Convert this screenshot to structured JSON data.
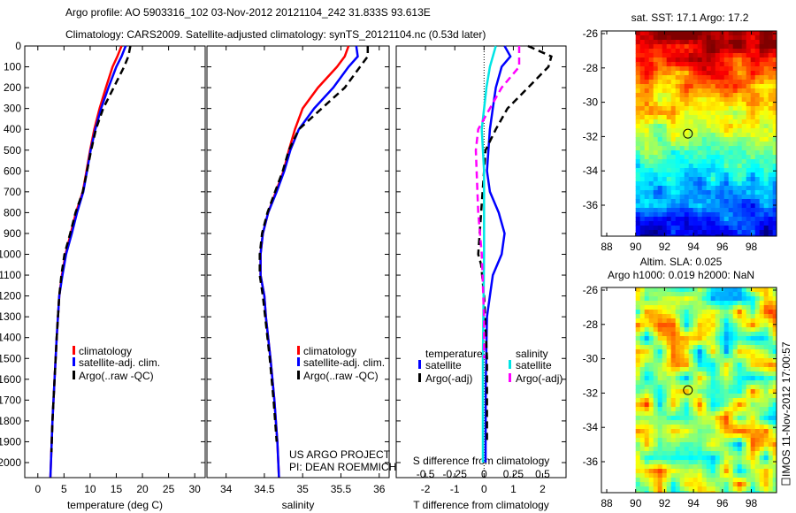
{
  "title_line1": "Argo profile: AO 5903316_102 03-Nov-2012 20121104_242 31.833S 93.613E",
  "title_line2": "Climatology: CARS2009. Satellite-adjusted climatology: synTS_20121104.nc (0.53d later)",
  "colors": {
    "climatology": "#ff0000",
    "satellite": "#0000ff",
    "argo": "#000000",
    "sal_satellite": "#00e5e5",
    "sal_argo": "#ff00ff"
  },
  "chart_data": [
    {
      "type": "line",
      "title": "",
      "xlabel": "temperature (deg C)",
      "ylabel": "",
      "xlim": [
        -2.5,
        32
      ],
      "ylim": [
        2070,
        0
      ],
      "xticks": [
        "0",
        "5",
        "10",
        "15",
        "20",
        "25",
        "30"
      ],
      "xtick_values": [
        0,
        5,
        10,
        15,
        20,
        25,
        30
      ],
      "yticks": [
        "0",
        "100",
        "200",
        "300",
        "400",
        "500",
        "600",
        "700",
        "800",
        "900",
        "1000",
        "1100",
        "1200",
        "1300",
        "1400",
        "1500",
        "1600",
        "1700",
        "1800",
        "1900",
        "2000"
      ],
      "legend": [
        "climatology",
        "satellite-adj. clim.",
        "Argo(..raw -QC)"
      ],
      "legend_placement": "bottom-center",
      "series": [
        {
          "name": "climatology",
          "color": "#ff0000",
          "dash": false,
          "depth": [
            0,
            50,
            100,
            200,
            300,
            400,
            500,
            600,
            700,
            800,
            900,
            1000,
            1100,
            1200,
            1400,
            1600,
            1800,
            2000,
            2070
          ],
          "values": [
            16,
            15.2,
            14.3,
            13.0,
            11.8,
            10.8,
            10.0,
            9.3,
            8.6,
            7.3,
            6.3,
            5.3,
            4.6,
            4.1,
            3.6,
            3.2,
            2.8,
            2.5,
            2.4
          ]
        },
        {
          "name": "satellite-adj. clim.",
          "color": "#0000ff",
          "dash": false,
          "depth": [
            0,
            50,
            100,
            200,
            300,
            400,
            500,
            600,
            700,
            800,
            900,
            1000,
            1100,
            1200,
            1400,
            1600,
            1800,
            2000,
            2070
          ],
          "values": [
            16.8,
            16.0,
            15.0,
            13.5,
            12.1,
            11.0,
            10.1,
            9.4,
            8.7,
            7.5,
            6.5,
            5.4,
            4.7,
            4.1,
            3.6,
            3.2,
            2.8,
            2.5,
            2.4
          ]
        },
        {
          "name": "Argo(..raw -QC)",
          "color": "#000000",
          "dash": true,
          "depth": [
            0,
            50,
            100,
            200,
            300,
            400,
            500,
            600,
            700,
            800,
            900,
            1000,
            1100,
            1200,
            1400,
            1600,
            1800,
            1950
          ],
          "values": [
            17.7,
            17.3,
            16.5,
            14.5,
            12.5,
            11.1,
            10.2,
            9.4,
            8.6,
            7.2,
            6.2,
            5.1,
            4.5,
            4.1,
            3.6,
            3.2,
            2.8,
            2.6
          ]
        }
      ]
    },
    {
      "type": "line",
      "xlabel": "salinity",
      "xlim": [
        33.75,
        36.13
      ],
      "ylim": [
        2070,
        0
      ],
      "xticks": [
        "34",
        "34.5",
        "35",
        "35.5",
        "36"
      ],
      "xtick_values": [
        34,
        34.5,
        35,
        35.5,
        36
      ],
      "legend": [
        "climatology",
        "satellite-adj. clim.",
        "Argo(..raw -QC)"
      ],
      "legend_placement": "bottom-right",
      "annotation": [
        "US ARGO PROJECT",
        "PI: DEAN ROEMMICH"
      ],
      "series": [
        {
          "name": "climatology",
          "color": "#ff0000",
          "dash": false,
          "depth": [
            0,
            50,
            100,
            200,
            300,
            400,
            500,
            600,
            700,
            800,
            900,
            1000,
            1100,
            1200,
            1300,
            1500,
            1700,
            1900,
            2070
          ],
          "values": [
            35.6,
            35.55,
            35.45,
            35.2,
            35.0,
            34.9,
            34.82,
            34.75,
            34.65,
            34.55,
            34.48,
            34.45,
            34.45,
            34.5,
            34.52,
            34.58,
            34.63,
            34.67,
            34.69
          ]
        },
        {
          "name": "satellite-adj. clim.",
          "color": "#0000ff",
          "dash": false,
          "depth": [
            0,
            50,
            100,
            200,
            300,
            400,
            500,
            600,
            700,
            800,
            900,
            1000,
            1100,
            1200,
            1300,
            1500,
            1700,
            1900,
            2070
          ],
          "values": [
            35.7,
            35.72,
            35.6,
            35.4,
            35.15,
            34.95,
            34.84,
            34.76,
            34.66,
            34.55,
            34.48,
            34.45,
            34.45,
            34.5,
            34.52,
            34.58,
            34.63,
            34.67,
            34.69
          ]
        },
        {
          "name": "Argo(..raw -QC)",
          "color": "#000000",
          "dash": true,
          "depth": [
            0,
            50,
            100,
            200,
            300,
            400,
            500,
            600,
            700,
            800,
            900,
            1000,
            1100,
            1200,
            1300,
            1500,
            1700,
            1900
          ],
          "values": [
            35.85,
            35.85,
            35.75,
            35.55,
            35.25,
            34.95,
            34.82,
            34.74,
            34.64,
            34.54,
            34.47,
            34.44,
            34.44,
            34.48,
            34.51,
            34.57,
            34.62,
            34.66
          ]
        }
      ]
    },
    {
      "type": "line",
      "xlabel": "T difference from climatology",
      "xlabel_top": "S difference from climatology",
      "xlim": [
        -3,
        2.8
      ],
      "ylim": [
        2070,
        0
      ],
      "xticks": [
        "-2",
        "-1",
        "0",
        "1",
        "2"
      ],
      "xtick_values": [
        -2,
        -1,
        0,
        1,
        2
      ],
      "sticks": [
        "-0.5",
        "-0.25",
        "0",
        "0.25",
        "0.5"
      ],
      "stick_values": [
        -0.5,
        -0.25,
        0,
        0.25,
        0.5
      ],
      "legend_temperature_title": "temperature",
      "legend_salinity_title": "salinity",
      "legend": [
        "satellite",
        "Argo(-adj)",
        "satellite",
        "Argo(-adj)"
      ],
      "series": [
        {
          "name": "T satellite",
          "color": "#0000ff",
          "dash": false,
          "scale": "T",
          "depth": [
            0,
            50,
            100,
            200,
            300,
            400,
            600,
            700,
            800,
            900,
            1000,
            1100,
            1300,
            1600,
            2000
          ],
          "values": [
            0.7,
            0.9,
            0.6,
            0.4,
            0.3,
            0.2,
            0.1,
            0.2,
            0.5,
            0.7,
            0.6,
            0.3,
            0.1,
            0.06,
            0.05
          ]
        },
        {
          "name": "T Argo(-adj)",
          "color": "#000000",
          "dash": true,
          "scale": "T",
          "depth": [
            0,
            50,
            100,
            200,
            300,
            400,
            500,
            600,
            800,
            1000,
            1050,
            1200,
            1500,
            1900
          ],
          "values": [
            1.5,
            2.3,
            2.2,
            1.5,
            0.8,
            0.4,
            0.05,
            0,
            -0.1,
            -0.2,
            -0.1,
            0,
            0.1,
            0.1
          ]
        },
        {
          "name": "S satellite",
          "color": "#00e5e5",
          "dash": false,
          "scale": "S",
          "depth": [
            0,
            100,
            200,
            400,
            600,
            1000,
            1500,
            2000
          ],
          "values": [
            0.1,
            0.05,
            0.02,
            -0.02,
            0,
            0,
            -0.01,
            -0.01
          ]
        },
        {
          "name": "S Argo(-adj)",
          "color": "#ff00ff",
          "dash": true,
          "scale": "S",
          "depth": [
            0,
            100,
            200,
            300,
            400,
            500,
            800,
            1000,
            1300,
            1500
          ],
          "values": [
            0.3,
            0.3,
            0.15,
            0.05,
            -0.05,
            -0.07,
            -0.05,
            -0.02,
            0,
            0
          ]
        }
      ]
    }
  ],
  "map_sst": {
    "title": "sat. SST: 17.1 Argo: 17.2",
    "xticks": [
      "88",
      "90",
      "92",
      "94",
      "96",
      "98"
    ],
    "yticks": [
      "-26",
      "-28",
      "-30",
      "-32",
      "-34",
      "-36"
    ],
    "argo_lon": 93.613,
    "argo_lat": -31.833
  },
  "map_sla": {
    "title1": "Altim. SLA: 0.025",
    "title2": "Argo h1000: 0.019 h2000: NaN",
    "xticks": [
      "88",
      "90",
      "92",
      "94",
      "96",
      "98"
    ],
    "yticks": [
      "-26",
      "-28",
      "-30",
      "-32",
      "-34",
      "-36"
    ]
  },
  "footer_stamp": "IMOS 11-Nov-2012 17:00:57"
}
